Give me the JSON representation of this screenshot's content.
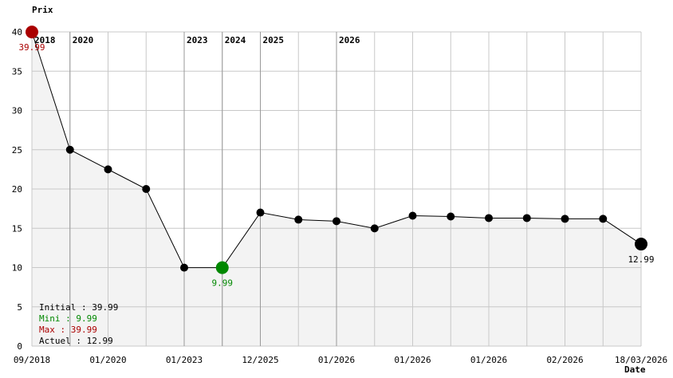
{
  "chart_data": {
    "type": "line",
    "ylabel": "Prix",
    "xlabel": "Date",
    "ylim": [
      0,
      40
    ],
    "yticks": [
      "0",
      "5",
      "10",
      "15",
      "20",
      "25",
      "30",
      "35",
      "40"
    ],
    "grid": true,
    "x_tick_labels": [
      "09/2018",
      "01/2020",
      "01/2023",
      "12/2025",
      "01/2026",
      "01/2026",
      "01/2026",
      "02/2026",
      "18/03/2026"
    ],
    "year_markers": [
      {
        "label": "2018",
        "index": 0
      },
      {
        "label": "2020",
        "index": 1
      },
      {
        "label": "2023",
        "index": 4
      },
      {
        "label": "2024",
        "index": 5
      },
      {
        "label": "2025",
        "index": 6
      },
      {
        "label": "2026",
        "index": 8
      }
    ],
    "values": [
      39.99,
      25.0,
      22.5,
      20.0,
      9.99,
      9.99,
      17.0,
      16.1,
      15.9,
      14.99,
      16.6,
      16.5,
      16.3,
      16.3,
      16.2,
      16.2,
      12.99
    ],
    "point_labels": [
      {
        "index": 0,
        "text": "39.99",
        "kind": "max"
      },
      {
        "index": 5,
        "text": "9.99",
        "kind": "min"
      },
      {
        "index": 16,
        "text": "12.99",
        "kind": "current"
      }
    ],
    "stats": {
      "initial": "Initial : 39.99",
      "mini": "Mini : 9.99",
      "max": "Max : 39.99",
      "actuel": "Actuel : 12.99"
    },
    "colors": {
      "max": "#aa0000",
      "min": "#008800",
      "line": "#000000",
      "fill": "#f3f3f3",
      "grid": "#c8c8c8",
      "year_line": "#999999"
    }
  }
}
